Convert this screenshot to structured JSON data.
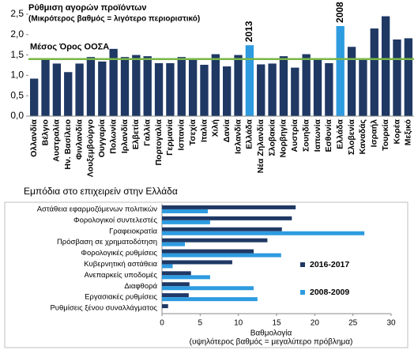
{
  "chart_data": [
    {
      "type": "bar",
      "title": "Ρύθμιση αγορών προϊόντων",
      "subtitle": "(Μικρότερος βαθμός = λιγότερο περιοριστικό)",
      "categories": [
        "Ολλανδία",
        "Βέλγιο",
        "Αυστραλία",
        "Ην. Βασίλειο",
        "Φινλανδία",
        "Λουξεμβούργο",
        "Ουγγαρία",
        "Πολωνία",
        "Ιρλανδία",
        "Ελβετία",
        "Γαλλία",
        "Πορτογαλία",
        "Γερμανία",
        "Ισπανία",
        "Τσεχία",
        "Ιταλία",
        "Χιλή",
        "Δανία",
        "Ισλανδία",
        "Ελλάδα",
        "Νέα Ζηλανδία",
        "Σλοβακία",
        "Νορβηγία",
        "Αυστρία",
        "Σουηδία",
        "Ιαπωνία",
        "Εσθονία",
        "Ελλάδα",
        "Σλοβενία",
        "Καναδάς",
        "Ισραήλ",
        "Τουρκία",
        "Κορέα",
        "Μεξικό"
      ],
      "values": [
        0.92,
        1.38,
        1.29,
        1.08,
        1.29,
        1.45,
        1.34,
        1.65,
        1.45,
        1.5,
        1.47,
        1.3,
        1.3,
        1.45,
        1.4,
        1.26,
        1.52,
        1.22,
        1.5,
        1.74,
        1.27,
        1.29,
        1.47,
        1.19,
        1.52,
        1.4,
        1.3,
        2.21,
        1.7,
        1.42,
        2.15,
        2.45,
        1.88,
        1.91
      ],
      "colors": [
        "#1f3864",
        "#1f3864",
        "#1f3864",
        "#1f3864",
        "#1f3864",
        "#1f3864",
        "#1f3864",
        "#1f3864",
        "#1f3864",
        "#1f3864",
        "#1f3864",
        "#1f3864",
        "#1f3864",
        "#1f3864",
        "#1f3864",
        "#1f3864",
        "#1f3864",
        "#1f3864",
        "#1f3864",
        "#2e9be0",
        "#1f3864",
        "#1f3864",
        "#1f3864",
        "#1f3864",
        "#1f3864",
        "#1f3864",
        "#1f3864",
        "#2e9be0",
        "#1f3864",
        "#1f3864",
        "#1f3864",
        "#1f3864",
        "#1f3864",
        "#1f3864"
      ],
      "ylim": [
        0,
        2.5
      ],
      "yticks": [
        {
          "value": 0,
          "label": "0,0"
        },
        {
          "value": 0.5,
          "label": "0,5"
        },
        {
          "value": 1,
          "label": "1,0"
        },
        {
          "value": 1.5,
          "label": "1,5"
        },
        {
          "value": 2,
          "label": "2,0"
        },
        {
          "value": 2.5,
          "label": "2,5"
        }
      ],
      "reference_line": {
        "label": "Μέσος Όρος ΟΟΣΑ",
        "value": 1.4,
        "color": "#7ab648"
      },
      "annotations": [
        {
          "text": "2013",
          "x": 19,
          "color": "#2e9be0"
        },
        {
          "text": "2008",
          "x": 27,
          "color": "#2e9be0"
        }
      ]
    },
    {
      "type": "hbar",
      "title": "Εμπόδια στο επιχειρείν στην Ελλάδα",
      "xlabel": [
        "Βαθμολογία",
        "(υψηλότερος βαθμός = μεγαλύτερο πρόβλημα)"
      ],
      "categories": [
        "Αστάθεια εφαρμοζόμενων πολιτικών",
        "Φορολογικοί συντελεστές",
        "Γραφειοκρατία",
        "Πρόσβαση σε χρηματοδότηση",
        "Φορολογικές ρυθμίσεις",
        "Κυβερνητική αστάθεια",
        "Ανεπαρκείς υποδομές",
        "Διαφθορά",
        "Εργασιακές ρυθμίσεις",
        "Ρυθμίσεις ξένου συναλλάγματος"
      ],
      "series": [
        {
          "name": "2016-2017",
          "color": "#1f3864",
          "values": [
            17.5,
            17,
            15.7,
            13.8,
            12,
            9.2,
            3.8,
            3.6,
            3.5,
            0.8
          ]
        },
        {
          "name": "2008-2009",
          "color": "#2e9be0",
          "values": [
            6,
            6.3,
            26.5,
            3,
            15.6,
            1.4,
            6.3,
            12,
            12.5,
            null
          ]
        }
      ],
      "xlim": [
        0,
        30
      ],
      "xticks": [
        0,
        5,
        10,
        15,
        20,
        25,
        30
      ]
    }
  ]
}
